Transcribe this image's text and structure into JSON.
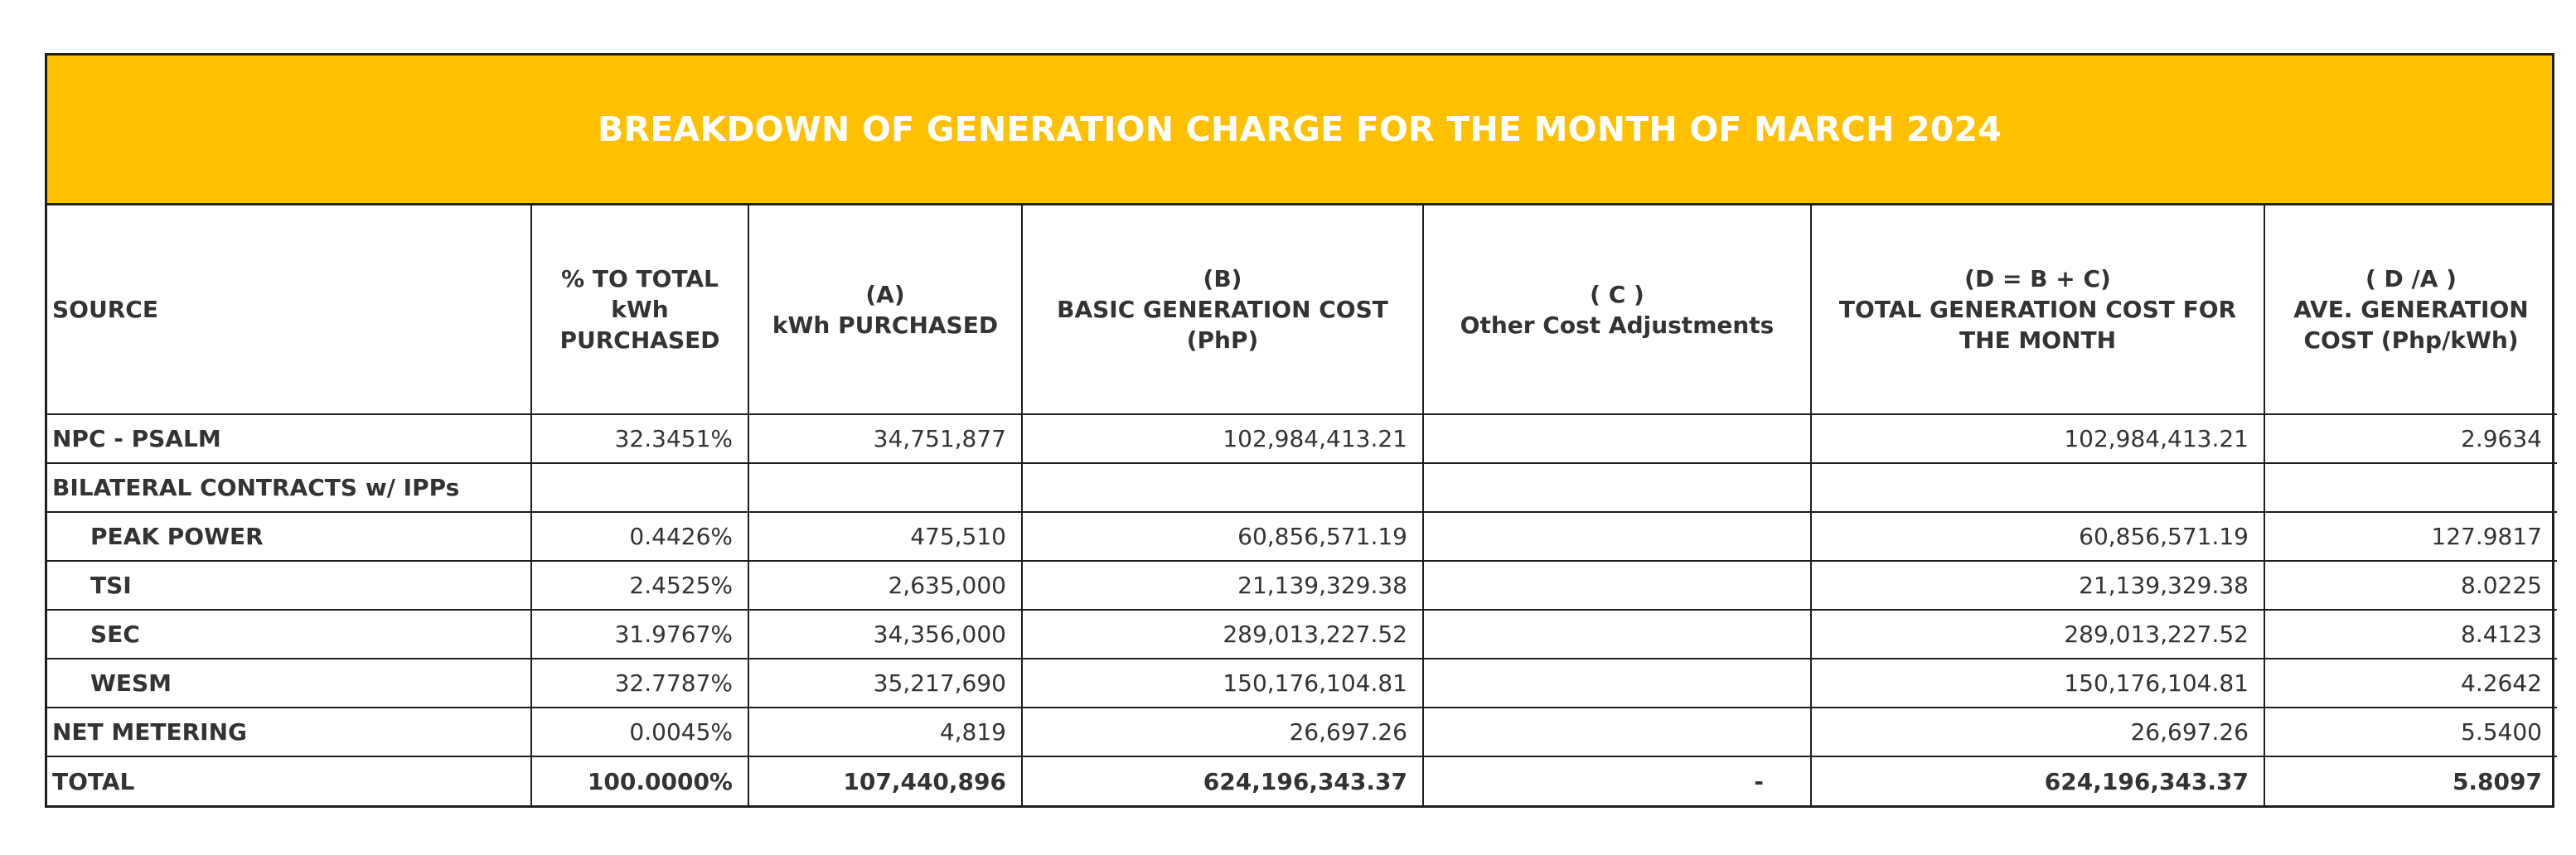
{
  "title": "BREAKDOWN OF GENERATION CHARGE FOR THE MONTH OF MARCH 2024",
  "colors": {
    "banner": "#ffc000",
    "banner_text": "#ffffff",
    "border": "#1e1e1e",
    "text": "#333333"
  },
  "headers": {
    "source": [
      "SOURCE"
    ],
    "pct": [
      "% TO TOTAL",
      "kWh",
      "PURCHASED"
    ],
    "kwh": [
      "(A)",
      "kWh PURCHASED"
    ],
    "basic": [
      "(B)",
      "BASIC GENERATION COST",
      "(PhP)"
    ],
    "other": [
      "( C )",
      "Other Cost Adjustments"
    ],
    "total_cost": [
      "(D = B + C)",
      "TOTAL GENERATION COST FOR",
      "THE MONTH"
    ],
    "ave": [
      "( D /A )",
      "AVE. GENERATION",
      "COST (Php/kWh)"
    ]
  },
  "rows": [
    {
      "source": "NPC - PSALM",
      "pct": "32.3451%",
      "kwh": "34,751,877",
      "basic": "102,984,413.21",
      "other": "",
      "total_cost": "102,984,413.21",
      "ave": "2.9634"
    },
    {
      "source": "BILATERAL CONTRACTS w/ IPPs",
      "pct": "",
      "kwh": "",
      "basic": "",
      "other": "",
      "total_cost": "",
      "ave": ""
    },
    {
      "source": "PEAK POWER",
      "pct": "0.4426%",
      "kwh": "475,510",
      "basic": "60,856,571.19",
      "other": "",
      "total_cost": "60,856,571.19",
      "ave": "127.9817"
    },
    {
      "source": "TSI",
      "pct": "2.4525%",
      "kwh": "2,635,000",
      "basic": "21,139,329.38",
      "other": "",
      "total_cost": "21,139,329.38",
      "ave": "8.0225"
    },
    {
      "source": "SEC",
      "pct": "31.9767%",
      "kwh": "34,356,000",
      "basic": "289,013,227.52",
      "other": "",
      "total_cost": "289,013,227.52",
      "ave": "8.4123"
    },
    {
      "source": "WESM",
      "pct": "32.7787%",
      "kwh": "35,217,690",
      "basic": "150,176,104.81",
      "other": "",
      "total_cost": "150,176,104.81",
      "ave": "4.2642"
    },
    {
      "source": "NET METERING",
      "pct": "0.0045%",
      "kwh": "4,819",
      "basic": "26,697.26",
      "other": "",
      "total_cost": "26,697.26",
      "ave": "5.5400"
    },
    {
      "source": "TOTAL",
      "pct": "100.0000%",
      "kwh": "107,440,896",
      "basic": "624,196,343.37",
      "other": "-",
      "total_cost": "624,196,343.37",
      "ave": "5.8097"
    }
  ]
}
